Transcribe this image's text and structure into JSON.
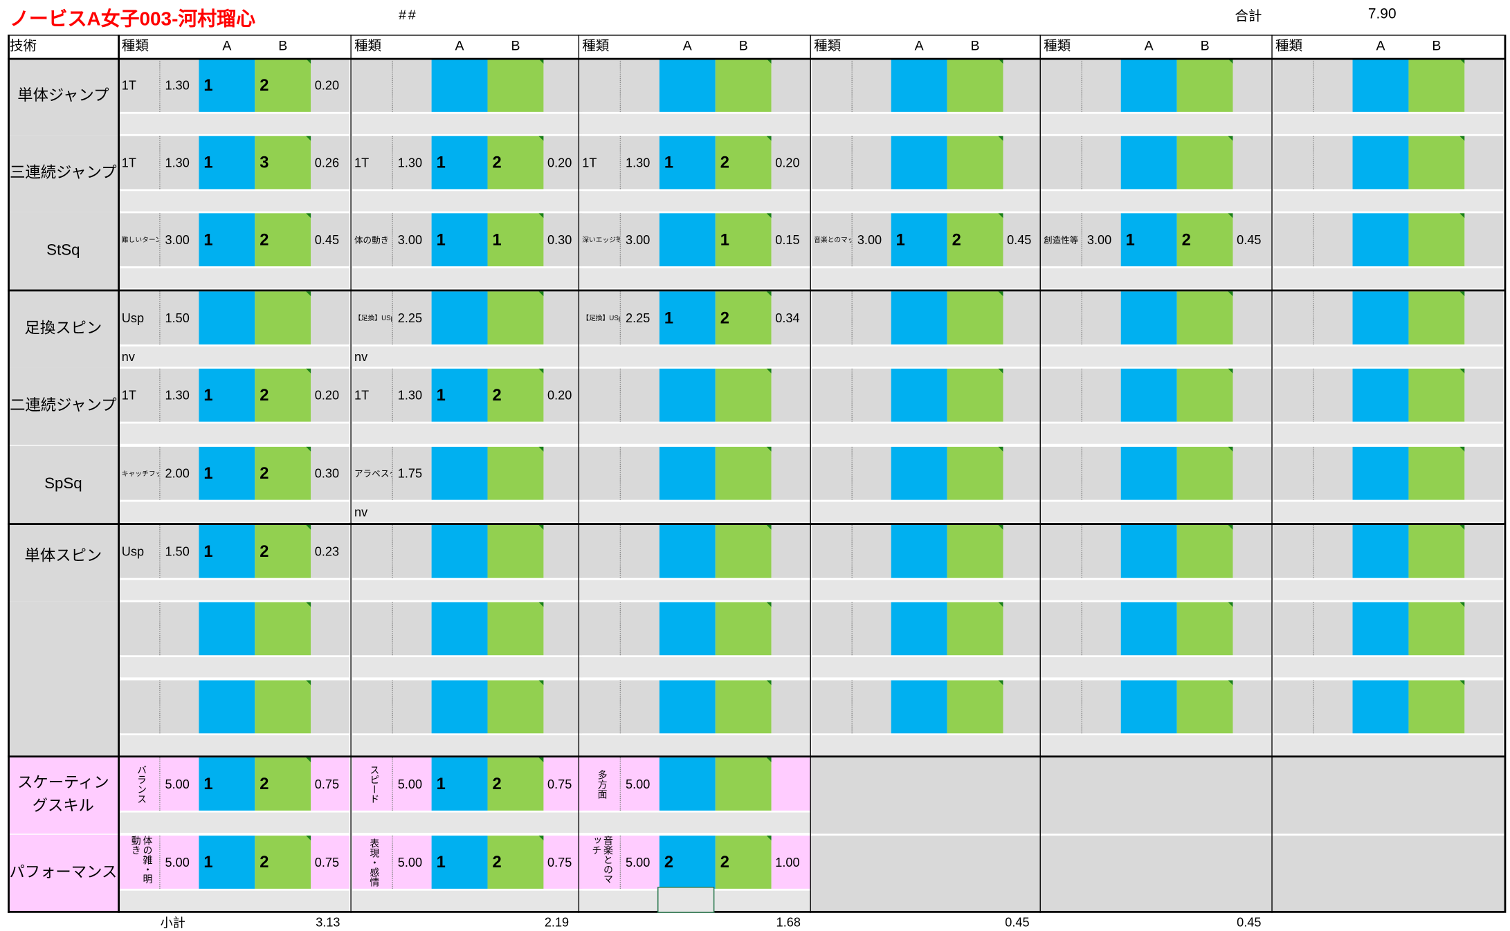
{
  "header": {
    "title": "ノービスA女子003-河村瑠心",
    "hash": "##",
    "total_label": "合計",
    "total_value": "7.90"
  },
  "table_header": {
    "first_col": "技術",
    "type_label": "種類",
    "a_label": "A",
    "b_label": "B"
  },
  "categories": [
    {
      "label": "単体ジャンプ",
      "rows": [
        0
      ]
    },
    {
      "label": "三連続ジャンプ",
      "rows": [
        1
      ]
    },
    {
      "label": "StSq",
      "rows": [
        2
      ]
    },
    {
      "label": "足換スピン",
      "rows": [
        3
      ]
    },
    {
      "label": "二連続ジャンプ",
      "rows": [
        4
      ]
    },
    {
      "label": "SpSq",
      "rows": [
        5
      ]
    },
    {
      "label": "単体スピン",
      "rows": [
        6,
        7,
        8
      ]
    },
    {
      "label": "スケーティン\nグスキル",
      "rows": [
        9
      ]
    },
    {
      "label": "パフォーマンス",
      "rows": [
        10
      ]
    }
  ],
  "rows": [
    [
      {
        "type": "1T",
        "base": "1.30",
        "a": "1",
        "b": "2",
        "val": "0.20",
        "sub": ""
      },
      {
        "type": "",
        "base": "",
        "a": "",
        "b": "",
        "val": "",
        "sub": ""
      },
      {
        "type": "",
        "base": "",
        "a": "",
        "b": "",
        "val": "",
        "sub": ""
      },
      {
        "type": "",
        "base": "",
        "a": "",
        "b": "",
        "val": "",
        "sub": ""
      },
      {
        "type": "",
        "base": "",
        "a": "",
        "b": "",
        "val": "",
        "sub": ""
      },
      {
        "type": "",
        "base": "",
        "a": "",
        "b": "",
        "val": "",
        "sub": ""
      }
    ],
    [
      {
        "type": "1T",
        "base": "1.30",
        "a": "1",
        "b": "3",
        "val": "0.26",
        "sub": ""
      },
      {
        "type": "1T",
        "base": "1.30",
        "a": "1",
        "b": "2",
        "val": "0.20",
        "sub": ""
      },
      {
        "type": "1T",
        "base": "1.30",
        "a": "1",
        "b": "2",
        "val": "0.20",
        "sub": ""
      },
      {
        "type": "",
        "base": "",
        "a": "",
        "b": "",
        "val": "",
        "sub": ""
      },
      {
        "type": "",
        "base": "",
        "a": "",
        "b": "",
        "val": "",
        "sub": ""
      },
      {
        "type": "",
        "base": "",
        "a": "",
        "b": "",
        "val": "",
        "sub": ""
      }
    ],
    [
      {
        "type": "難しいターン",
        "tiny": true,
        "base": "3.00",
        "a": "1",
        "b": "2",
        "val": "0.45",
        "sub": ""
      },
      {
        "type": "体の動き",
        "small": true,
        "base": "3.00",
        "a": "1",
        "b": "1",
        "val": "0.30",
        "sub": ""
      },
      {
        "type": "深いエッジ等",
        "tiny": true,
        "base": "3.00",
        "a": "",
        "b": "1",
        "val": "0.15",
        "sub": ""
      },
      {
        "type": "音楽とのマッチ",
        "tiny": true,
        "base": "3.00",
        "a": "1",
        "b": "2",
        "val": "0.45",
        "sub": ""
      },
      {
        "type": "創造性等",
        "small": true,
        "base": "3.00",
        "a": "1",
        "b": "2",
        "val": "0.45",
        "sub": ""
      },
      {
        "type": "",
        "base": "",
        "a": "",
        "b": "",
        "val": "",
        "sub": ""
      }
    ],
    [
      {
        "type": "Usp",
        "base": "1.50",
        "a": "",
        "b": "",
        "val": "",
        "sub": "nv"
      },
      {
        "type": "【足換】USp",
        "tiny": true,
        "base": "2.25",
        "a": "",
        "b": "",
        "val": "",
        "sub": "nv"
      },
      {
        "type": "【足換】USp",
        "tiny": true,
        "base": "2.25",
        "a": "1",
        "b": "2",
        "val": "0.34",
        "sub": ""
      },
      {
        "type": "",
        "base": "",
        "a": "",
        "b": "",
        "val": "",
        "sub": ""
      },
      {
        "type": "",
        "base": "",
        "a": "",
        "b": "",
        "val": "",
        "sub": ""
      },
      {
        "type": "",
        "base": "",
        "a": "",
        "b": "",
        "val": "",
        "sub": ""
      }
    ],
    [
      {
        "type": "1T",
        "base": "1.30",
        "a": "1",
        "b": "2",
        "val": "0.20",
        "sub": ""
      },
      {
        "type": "1T",
        "base": "1.30",
        "a": "1",
        "b": "2",
        "val": "0.20",
        "sub": ""
      },
      {
        "type": "",
        "base": "",
        "a": "",
        "b": "",
        "val": "",
        "sub": ""
      },
      {
        "type": "",
        "base": "",
        "a": "",
        "b": "",
        "val": "",
        "sub": ""
      },
      {
        "type": "",
        "base": "",
        "a": "",
        "b": "",
        "val": "",
        "sub": ""
      },
      {
        "type": "",
        "base": "",
        "a": "",
        "b": "",
        "val": "",
        "sub": ""
      }
    ],
    [
      {
        "type": "キャッチフット",
        "tiny": true,
        "base": "2.00",
        "a": "1",
        "b": "2",
        "val": "0.30",
        "sub": ""
      },
      {
        "type": "アラベスク",
        "small": true,
        "base": "1.75",
        "a": "",
        "b": "",
        "val": "",
        "sub": "nv"
      },
      {
        "type": "",
        "base": "",
        "a": "",
        "b": "",
        "val": "",
        "sub": ""
      },
      {
        "type": "",
        "base": "",
        "a": "",
        "b": "",
        "val": "",
        "sub": ""
      },
      {
        "type": "",
        "base": "",
        "a": "",
        "b": "",
        "val": "",
        "sub": ""
      },
      {
        "type": "",
        "base": "",
        "a": "",
        "b": "",
        "val": "",
        "sub": ""
      }
    ],
    [
      {
        "type": "Usp",
        "base": "1.50",
        "a": "1",
        "b": "2",
        "val": "0.23",
        "sub": ""
      },
      {
        "type": "",
        "base": "",
        "a": "",
        "b": "",
        "val": "",
        "sub": ""
      },
      {
        "type": "",
        "base": "",
        "a": "",
        "b": "",
        "val": "",
        "sub": ""
      },
      {
        "type": "",
        "base": "",
        "a": "",
        "b": "",
        "val": "",
        "sub": ""
      },
      {
        "type": "",
        "base": "",
        "a": "",
        "b": "",
        "val": "",
        "sub": ""
      },
      {
        "type": "",
        "base": "",
        "a": "",
        "b": "",
        "val": "",
        "sub": ""
      }
    ],
    [
      {
        "type": "",
        "base": "",
        "a": "",
        "b": "",
        "val": "",
        "sub": ""
      },
      {
        "type": "",
        "base": "",
        "a": "",
        "b": "",
        "val": "",
        "sub": ""
      },
      {
        "type": "",
        "base": "",
        "a": "",
        "b": "",
        "val": "",
        "sub": ""
      },
      {
        "type": "",
        "base": "",
        "a": "",
        "b": "",
        "val": "",
        "sub": ""
      },
      {
        "type": "",
        "base": "",
        "a": "",
        "b": "",
        "val": "",
        "sub": ""
      },
      {
        "type": "",
        "base": "",
        "a": "",
        "b": "",
        "val": "",
        "sub": ""
      }
    ],
    [
      {
        "type": "",
        "base": "",
        "a": "",
        "b": "",
        "val": "",
        "sub": ""
      },
      {
        "type": "",
        "base": "",
        "a": "",
        "b": "",
        "val": "",
        "sub": ""
      },
      {
        "type": "",
        "base": "",
        "a": "",
        "b": "",
        "val": "",
        "sub": ""
      },
      {
        "type": "",
        "base": "",
        "a": "",
        "b": "",
        "val": "",
        "sub": ""
      },
      {
        "type": "",
        "base": "",
        "a": "",
        "b": "",
        "val": "",
        "sub": ""
      },
      {
        "type": "",
        "base": "",
        "a": "",
        "b": "",
        "val": "",
        "sub": ""
      }
    ],
    [
      {
        "type": "バランス",
        "vertical": true,
        "base": "5.00",
        "a": "1",
        "b": "2",
        "val": "0.75",
        "sub": ""
      },
      {
        "type": "スピード",
        "vertical": true,
        "base": "5.00",
        "a": "1",
        "b": "2",
        "val": "0.75",
        "sub": ""
      },
      {
        "type": "多方面",
        "vertical": true,
        "base": "5.00",
        "a": "",
        "b": "",
        "val": "",
        "sub": ""
      }
    ],
    [
      {
        "type": "体の雑・明動き",
        "vertical": true,
        "base": "5.00",
        "a": "1",
        "b": "2",
        "val": "0.75",
        "sub": ""
      },
      {
        "type": "表現・感情",
        "vertical": true,
        "base": "5.00",
        "a": "1",
        "b": "2",
        "val": "0.75",
        "sub": ""
      },
      {
        "type": "音楽とのマッチ",
        "vertical": true,
        "base": "5.00",
        "a": "2",
        "b": "2",
        "val": "1.00",
        "sub": ""
      }
    ]
  ],
  "subtotal": {
    "label": "小計",
    "values": [
      "3.13",
      "2.19",
      "1.68",
      "0.45",
      "0.45"
    ]
  },
  "colors": {
    "title": "#ff0000",
    "a_cell": "#00b0f0",
    "b_cell": "#92d050",
    "grey": "#d9d9d9",
    "pink": "#ffccff"
  }
}
